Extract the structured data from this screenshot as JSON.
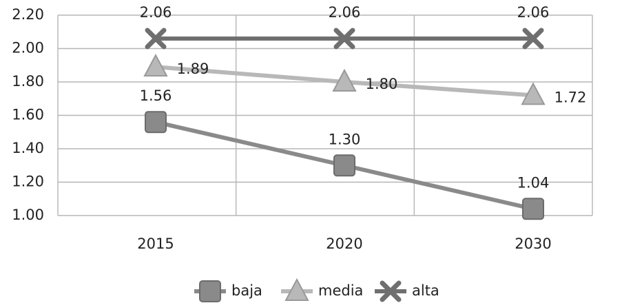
{
  "chart_data": {
    "type": "line",
    "categories": [
      "2015",
      "2020",
      "2030"
    ],
    "ylim": [
      1.0,
      2.2
    ],
    "yticks": [
      "1.00",
      "1.20",
      "1.40",
      "1.60",
      "1.80",
      "2.00",
      "2.20"
    ],
    "grid": true,
    "legend_position": "bottom",
    "series": [
      {
        "name": "baja",
        "values": [
          1.56,
          1.3,
          1.04
        ],
        "labels": [
          "1.56",
          "1.30",
          "1.04"
        ],
        "marker": "square",
        "color": "#8a8a8a"
      },
      {
        "name": "media",
        "values": [
          1.89,
          1.8,
          1.72
        ],
        "labels": [
          "1.89",
          "1.80",
          "1.72"
        ],
        "marker": "triangle",
        "color": "#b8b8b8"
      },
      {
        "name": "alta",
        "values": [
          2.06,
          2.06,
          2.06
        ],
        "labels": [
          "2.06",
          "2.06",
          "2.06"
        ],
        "marker": "x",
        "color": "#6f6f6f"
      }
    ]
  }
}
